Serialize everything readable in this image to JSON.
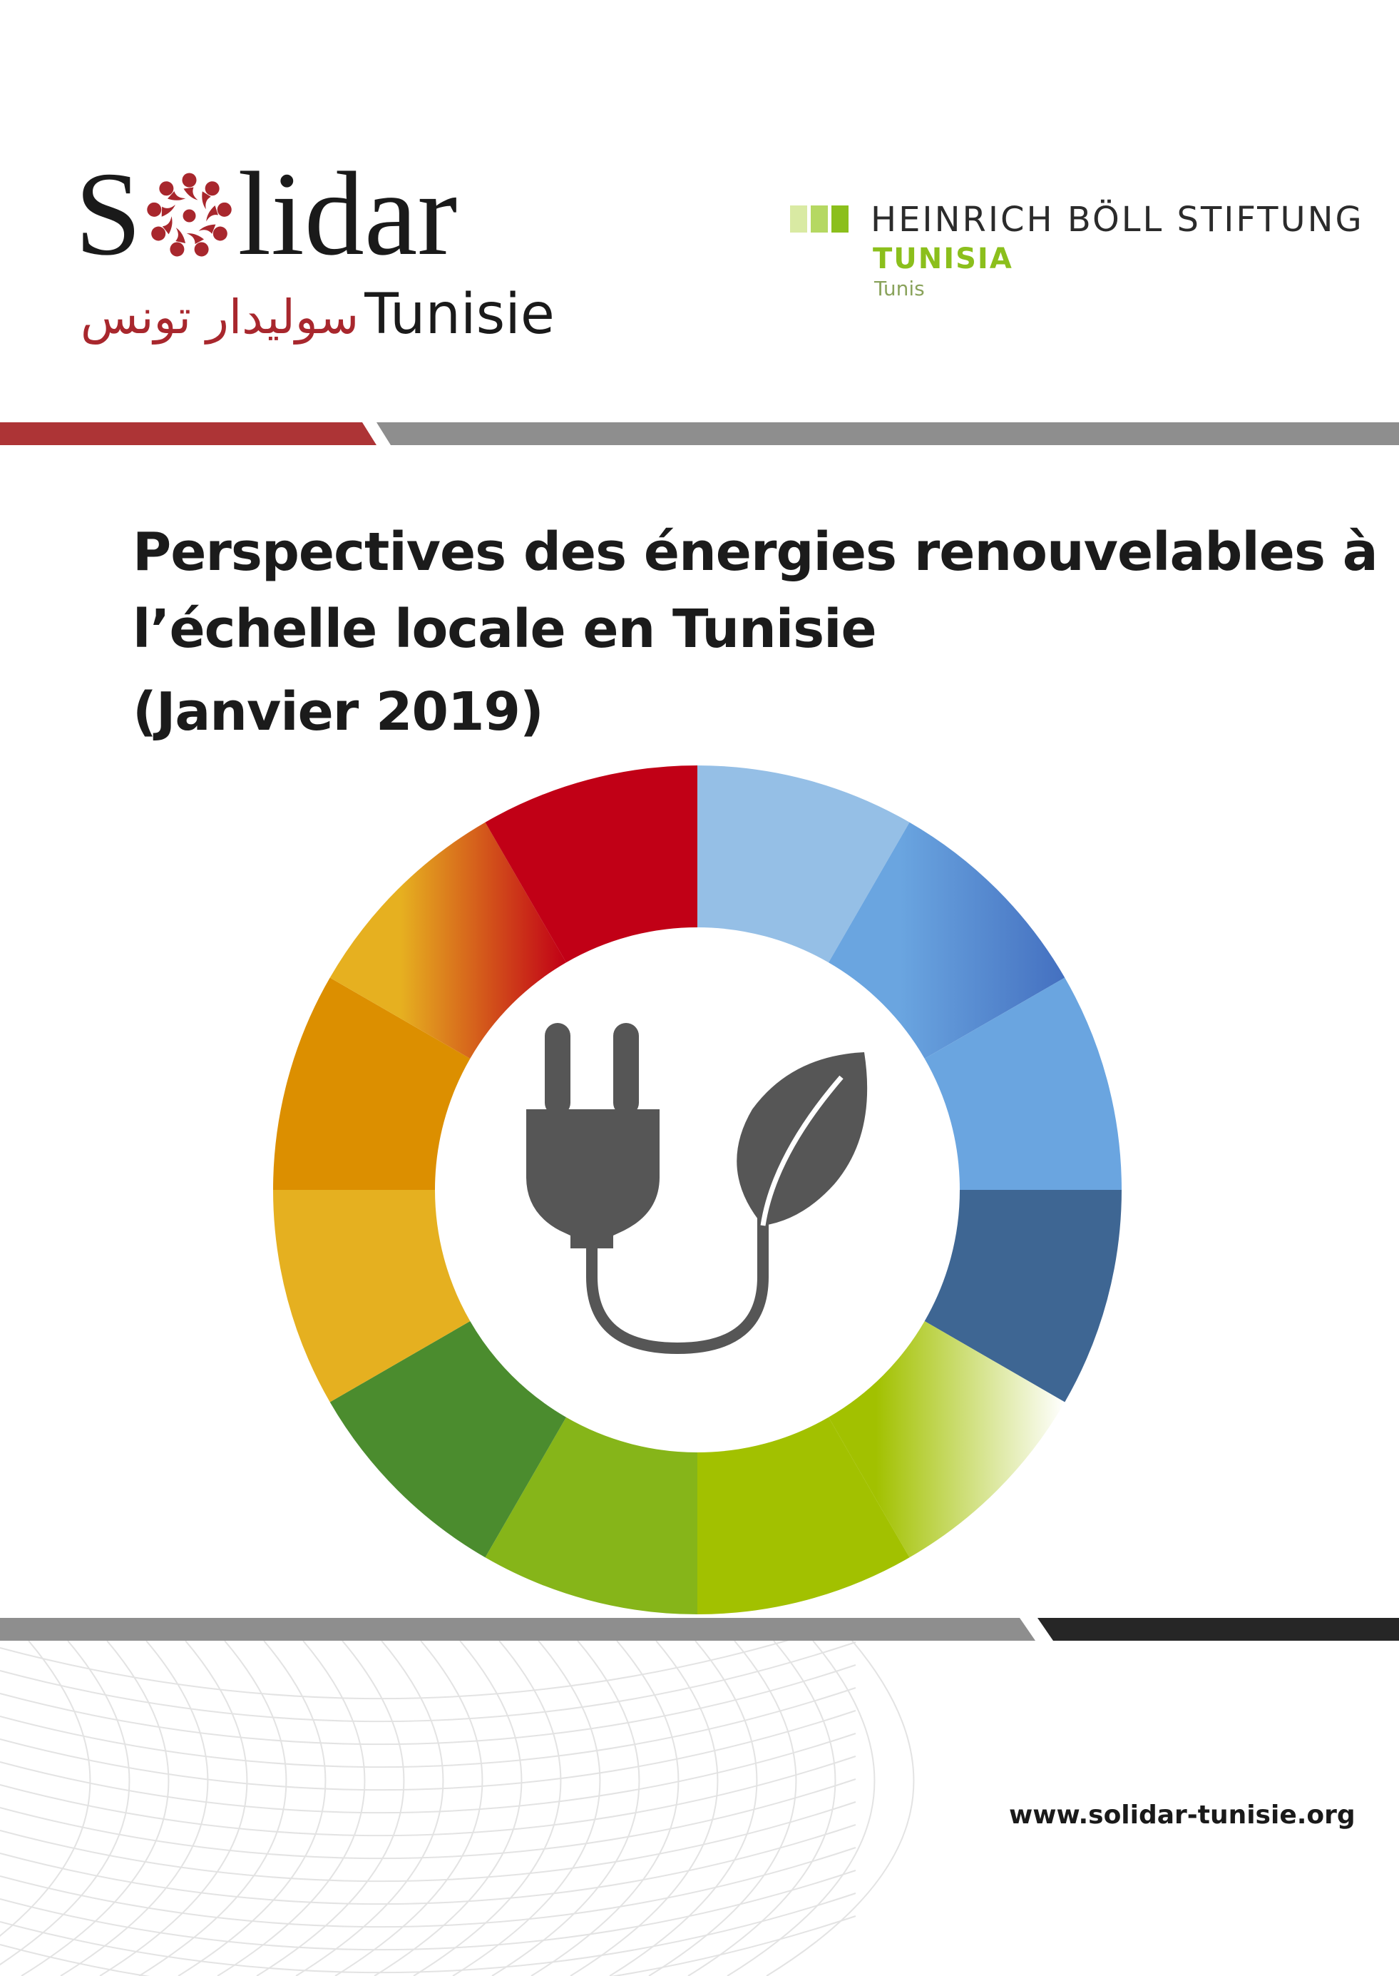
{
  "solidar": {
    "wordmark_s": "S",
    "wordmark_rest": "lidar",
    "arabic": "سوليدار تونس",
    "sub": "Tunisie",
    "colors": {
      "primary": "#a8272d",
      "text": "#1a1a1a"
    }
  },
  "hbs": {
    "title": "HEINRICH BÖLL STIFTUNG",
    "country": "TUNISIA",
    "city": "Tunis",
    "colors": {
      "squares": [
        "#d9eaa3",
        "#b5d862",
        "#8bbf1c"
      ],
      "accent": "#8bbf1c"
    }
  },
  "title": {
    "line1": "Perspectives des énergies renouvelables à",
    "line2": "l’échelle locale en Tunisie",
    "line3": "(Janvier 2019)"
  },
  "graphic": {
    "icons": [
      "plug-icon",
      "leaf-icon"
    ],
    "ring_colors": [
      "#95bfe6",
      "#5a93d6",
      "#6aa5e0",
      "#3e6693",
      "#a6c72a",
      "#a2c100",
      "#86b519",
      "#4b8c2e",
      "#e5b020",
      "#dc8f00",
      "#e4a820",
      "#c10016"
    ],
    "bar_colors": {
      "red": "#ad3436",
      "gray": "#8e8e8e",
      "black": "#262626"
    }
  },
  "footer": {
    "website": "www.solidar-tunisie.org"
  }
}
